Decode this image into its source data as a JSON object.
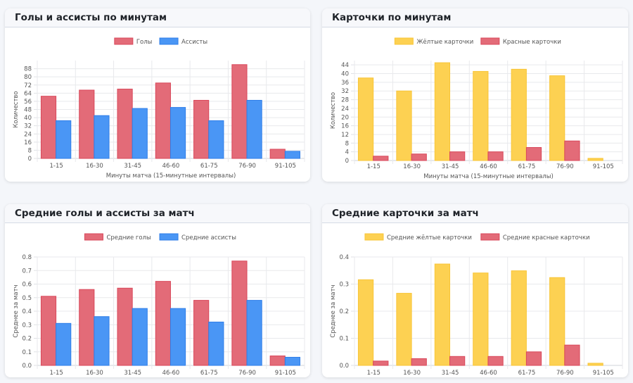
{
  "charts": [
    {
      "title": "Голы и ассисты по минутам",
      "chart_data": {
        "type": "bar",
        "categories": [
          "1-15",
          "16-30",
          "31-45",
          "46-60",
          "61-75",
          "76-90",
          "91-105"
        ],
        "series": [
          {
            "name": "Голы",
            "values": [
              61,
              67,
              68,
              74,
              57,
              92,
              9
            ]
          },
          {
            "name": "Ассисты",
            "values": [
              37,
              42,
              49,
              50,
              37,
              57,
              7
            ]
          }
        ],
        "xlabel": "Минуты матча (15-минутные интервалы)",
        "ylabel": "Количество",
        "ylim": [
          0,
          96
        ],
        "yticks": [
          0,
          8,
          16,
          24,
          32,
          40,
          48,
          56,
          64,
          72,
          80,
          88
        ],
        "legend": "top-center"
      }
    },
    {
      "title": "Карточки по минутам",
      "chart_data": {
        "type": "bar",
        "categories": [
          "1-15",
          "16-30",
          "31-45",
          "46-60",
          "61-75",
          "76-90",
          "91-105"
        ],
        "series": [
          {
            "name": "Жёлтые карточки",
            "values": [
              38,
              32,
              45,
              41,
              42,
              39,
              1
            ]
          },
          {
            "name": "Красные карточки",
            "values": [
              2,
              3,
              4,
              4,
              6,
              9,
              0
            ]
          }
        ],
        "xlabel": "Минуты матча (15-минутные интервалы)",
        "ylabel": "Количество",
        "ylim": [
          0,
          46
        ],
        "yticks": [
          0,
          4,
          8,
          12,
          16,
          20,
          24,
          28,
          32,
          36,
          40,
          44
        ],
        "legend": "top-center"
      }
    },
    {
      "title": "Средние голы и ассисты за матч",
      "chart_data": {
        "type": "bar",
        "categories": [
          "1-15",
          "16-30",
          "31-45",
          "46-60",
          "61-75",
          "76-90",
          "91-105"
        ],
        "series": [
          {
            "name": "Средние голы",
            "values": [
              0.51,
              0.56,
              0.57,
              0.62,
              0.48,
              0.77,
              0.07
            ]
          },
          {
            "name": "Средние ассисты",
            "values": [
              0.31,
              0.36,
              0.42,
              0.42,
              0.32,
              0.48,
              0.06
            ]
          }
        ],
        "xlabel": "Минуты матча (15-минутные интервалы)",
        "ylabel": "Среднее за матч",
        "ylim": [
          0,
          0.8
        ],
        "yticks": [
          0,
          0.1,
          0.2,
          0.3,
          0.4,
          0.5,
          0.6,
          0.7,
          0.8
        ],
        "tick_labels": [
          "0.0",
          "0.1",
          "0.2",
          "0.3",
          "0.4",
          "0.5",
          "0.6",
          "0.7",
          "0.8"
        ],
        "legend": "top-center"
      }
    },
    {
      "title": "Средние карточки за матч",
      "chart_data": {
        "type": "bar",
        "categories": [
          "1-15",
          "16-30",
          "31-45",
          "46-60",
          "61-75",
          "76-90",
          "91-105"
        ],
        "series": [
          {
            "name": "Средние жёлтые карточки",
            "values": [
              0.316,
              0.266,
              0.374,
              0.341,
              0.349,
              0.324,
              0.008
            ]
          },
          {
            "name": "Средние красные карточки",
            "values": [
              0.016,
              0.025,
              0.033,
              0.033,
              0.05,
              0.075,
              0.0
            ]
          }
        ],
        "xlabel": "Минуты матча (15-минутные интервалы)",
        "ylabel": "Среднее за матч",
        "ylim": [
          0,
          0.4
        ],
        "yticks": [
          0,
          0.1,
          0.2,
          0.3,
          0.4
        ],
        "tick_labels": [
          "0.0",
          "0.1",
          "0.2",
          "0.3",
          "0.4"
        ],
        "legend": "top-center"
      }
    }
  ],
  "colors": {
    "goals_fill": "#e36b78",
    "goals_stroke": "#d9475a",
    "assists_fill": "#4a96f5",
    "assists_stroke": "#2f7ee8",
    "yellow_fill": "#fdd152",
    "yellow_stroke": "#f8c537",
    "red_fill": "#e36b78",
    "red_stroke": "#d9475a"
  }
}
